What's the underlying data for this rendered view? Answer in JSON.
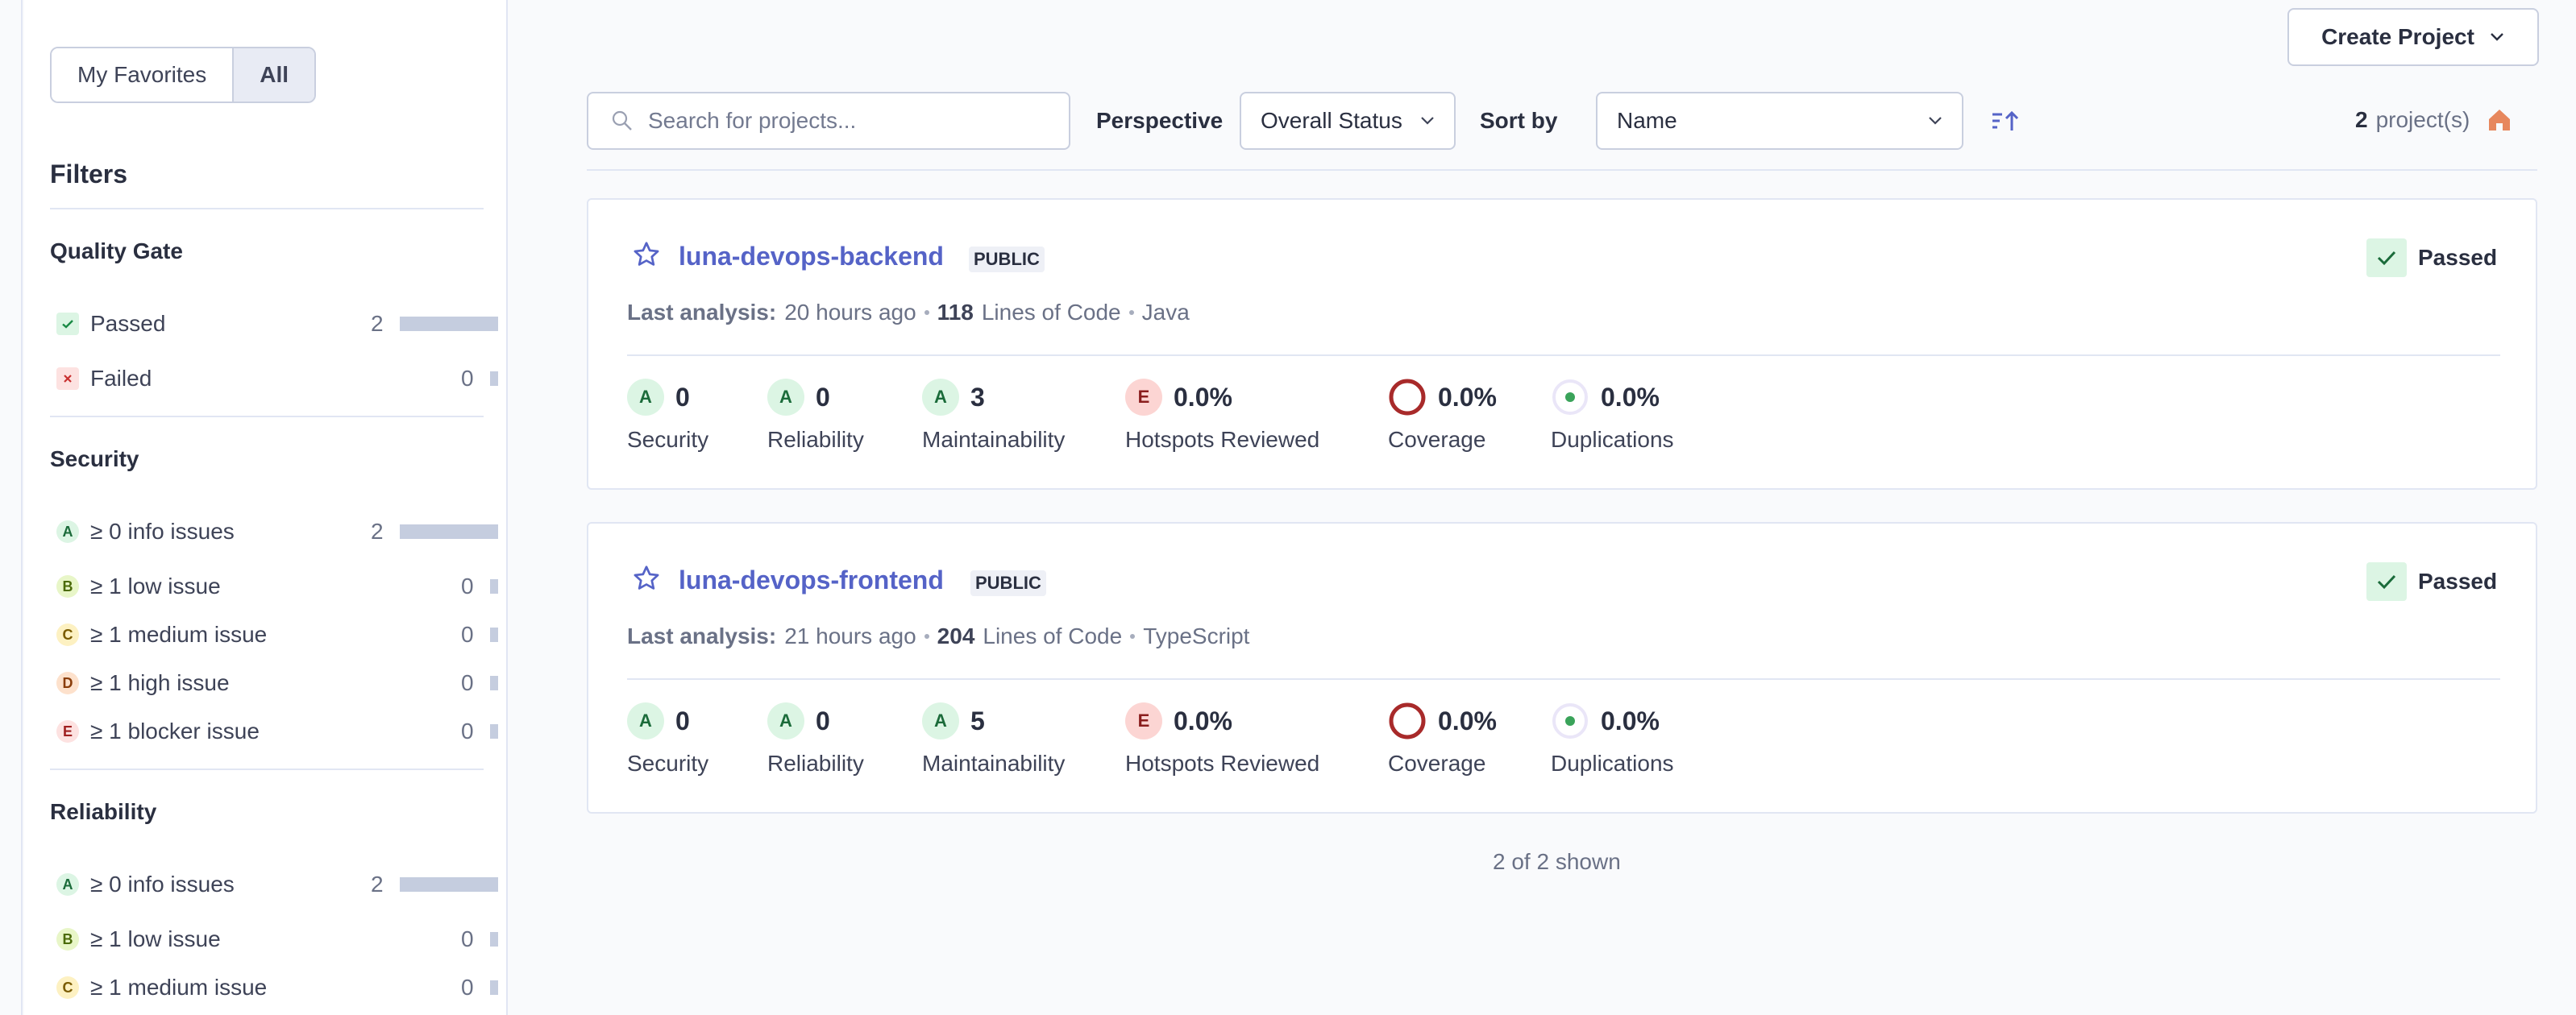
{
  "sidebar": {
    "toggle": {
      "favorites": "My Favorites",
      "all": "All"
    },
    "filters_title": "Filters",
    "quality_gate": {
      "title": "Quality Gate",
      "items": [
        {
          "label": "Passed",
          "count": "2",
          "icon": "check-icon"
        },
        {
          "label": "Failed",
          "count": "0",
          "icon": "x-icon"
        }
      ]
    },
    "security": {
      "title": "Security",
      "items": [
        {
          "rating": "A",
          "label": "≥ 0 info issues",
          "count": "2"
        },
        {
          "rating": "B",
          "label": "≥ 1 low issue",
          "count": "0"
        },
        {
          "rating": "C",
          "label": "≥ 1 medium issue",
          "count": "0"
        },
        {
          "rating": "D",
          "label": "≥ 1 high issue",
          "count": "0"
        },
        {
          "rating": "E",
          "label": "≥ 1 blocker issue",
          "count": "0"
        }
      ]
    },
    "reliability": {
      "title": "Reliability",
      "items": [
        {
          "rating": "A",
          "label": "≥ 0 info issues",
          "count": "2"
        },
        {
          "rating": "B",
          "label": "≥ 1 low issue",
          "count": "0"
        },
        {
          "rating": "C",
          "label": "≥ 1 medium issue",
          "count": "0"
        }
      ]
    }
  },
  "toolbar": {
    "create_project": "Create Project",
    "search_placeholder": "Search for projects...",
    "perspective_label": "Perspective",
    "perspective_value": "Overall Status",
    "sort_label": "Sort by",
    "sort_value": "Name",
    "project_count": "2",
    "project_count_suffix": "project(s)"
  },
  "projects": [
    {
      "name": "luna-devops-backend",
      "visibility": "PUBLIC",
      "status": "Passed",
      "last_analysis_label": "Last analysis:",
      "last_analysis": "20 hours ago",
      "loc": "118",
      "loc_label": "Lines of Code",
      "language": "Java",
      "metrics": {
        "security": {
          "rating": "A",
          "value": "0",
          "label": "Security"
        },
        "reliability": {
          "rating": "A",
          "value": "0",
          "label": "Reliability"
        },
        "maintainability": {
          "rating": "A",
          "value": "3",
          "label": "Maintainability"
        },
        "hotspots": {
          "rating": "E",
          "value": "0.0%",
          "label": "Hotspots Reviewed"
        },
        "coverage": {
          "value": "0.0%",
          "label": "Coverage"
        },
        "duplications": {
          "value": "0.0%",
          "label": "Duplications"
        }
      }
    },
    {
      "name": "luna-devops-frontend",
      "visibility": "PUBLIC",
      "status": "Passed",
      "last_analysis_label": "Last analysis:",
      "last_analysis": "21 hours ago",
      "loc": "204",
      "loc_label": "Lines of Code",
      "language": "TypeScript",
      "metrics": {
        "security": {
          "rating": "A",
          "value": "0",
          "label": "Security"
        },
        "reliability": {
          "rating": "A",
          "value": "0",
          "label": "Reliability"
        },
        "maintainability": {
          "rating": "A",
          "value": "5",
          "label": "Maintainability"
        },
        "hotspots": {
          "rating": "E",
          "value": "0.0%",
          "label": "Hotspots Reviewed"
        },
        "coverage": {
          "value": "0.0%",
          "label": "Coverage"
        },
        "duplications": {
          "value": "0.0%",
          "label": "Duplications"
        }
      }
    }
  ],
  "footer": {
    "shown": "2 of 2 shown"
  },
  "colors": {
    "accent": "#5563c7",
    "passed": "#1a8a45",
    "coverage_ring": "#a82a2a",
    "home_icon": "#e7875d"
  }
}
